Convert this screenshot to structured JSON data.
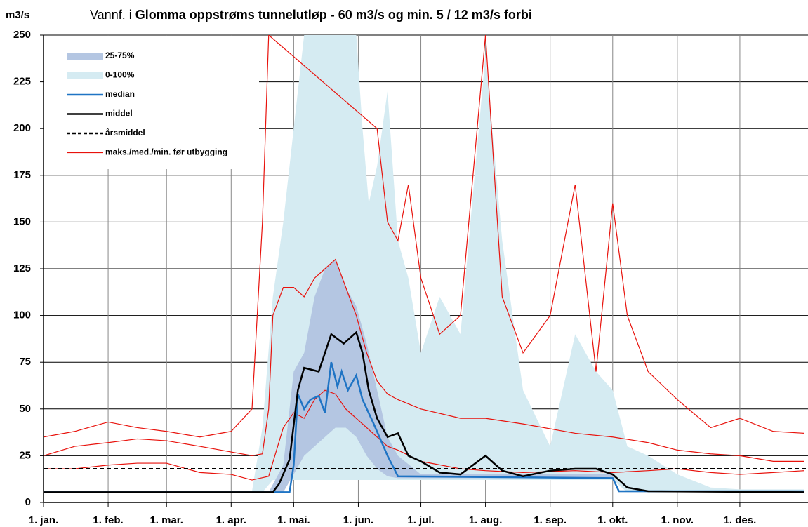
{
  "chart_data": {
    "type": "line",
    "title": [
      "Vannf. i",
      "Glomma oppstrøms tunnelutløp - 60 m3/s og min. 5 / 12 m3/s forbi"
    ],
    "y_label": "m3/s",
    "xlim": [
      0,
      365
    ],
    "xticks": [
      {
        "value": 0,
        "label": "1. jan."
      },
      {
        "value": 31,
        "label": "1. feb."
      },
      {
        "value": 59,
        "label": "1. mar."
      },
      {
        "value": 90,
        "label": "1. apr."
      },
      {
        "value": 120,
        "label": "1. mai."
      },
      {
        "value": 151,
        "label": "1. jun."
      },
      {
        "value": 181,
        "label": "1. jul."
      },
      {
        "value": 212,
        "label": "1. aug."
      },
      {
        "value": 243,
        "label": "1. sep."
      },
      {
        "value": 273,
        "label": "1. okt."
      },
      {
        "value": 304,
        "label": "1. nov."
      },
      {
        "value": 334,
        "label": "1. des."
      }
    ],
    "ylim": [
      0,
      250
    ],
    "yticks": [
      0,
      25,
      50,
      75,
      100,
      125,
      150,
      175,
      200,
      225,
      250
    ],
    "grid": true,
    "series": [
      {
        "name": "25-75%",
        "kind": "band",
        "color": "#b4c6e2",
        "x": [
          0,
          108,
          115,
          120,
          125,
          130,
          135,
          140,
          145,
          150,
          155,
          160,
          165,
          170,
          181,
          273,
          276,
          365
        ],
        "lower": [
          5.5,
          5.5,
          5.5,
          15,
          25,
          30,
          35,
          40,
          40,
          35,
          25,
          18,
          14,
          13,
          13,
          13,
          5.5,
          5.5
        ],
        "upper": [
          5.5,
          5.5,
          20,
          70,
          80,
          110,
          125,
          130,
          115,
          105,
          85,
          60,
          35,
          25,
          15,
          15,
          6,
          6
        ]
      },
      {
        "name": "0-100%",
        "kind": "band",
        "color": "#d5ebf2",
        "x": [
          0,
          100,
          105,
          110,
          115,
          120,
          125,
          130,
          135,
          140,
          145,
          150,
          153,
          156,
          160,
          165,
          170,
          175,
          181,
          190,
          200,
          212,
          220,
          230,
          243,
          255,
          265,
          273,
          280,
          290,
          304,
          320,
          334,
          350,
          365
        ],
        "lower": [
          5.5,
          5.5,
          5.5,
          12,
          12,
          12,
          12,
          12,
          12,
          12,
          12,
          12,
          12,
          12,
          12,
          12,
          12,
          12,
          12,
          12,
          12,
          12,
          12,
          12,
          12,
          12,
          12,
          12,
          5.5,
          5.5,
          5.5,
          5.5,
          5.5,
          5.5,
          5.5
        ],
        "upper": [
          6,
          6,
          40,
          110,
          150,
          200,
          250,
          250,
          250,
          250,
          250,
          250,
          200,
          160,
          180,
          220,
          140,
          120,
          80,
          110,
          90,
          240,
          140,
          60,
          30,
          90,
          70,
          60,
          30,
          25,
          15,
          8,
          7,
          7,
          7
        ]
      },
      {
        "name": "median",
        "kind": "line",
        "color": "#1f74c4",
        "width": 2.5,
        "x": [
          0,
          118,
          120,
          122,
          125,
          128,
          132,
          135,
          138,
          141,
          143,
          146,
          150,
          153,
          158,
          165,
          170,
          273,
          276,
          365
        ],
        "values": [
          5.5,
          5.5,
          20,
          58,
          50,
          55,
          57,
          48,
          75,
          62,
          70,
          60,
          68,
          55,
          43,
          25,
          14,
          13,
          6,
          6
        ]
      },
      {
        "name": "middel",
        "kind": "line",
        "color": "#000000",
        "width": 2.5,
        "x": [
          0,
          110,
          113,
          118,
          122,
          125,
          132,
          135,
          138,
          144,
          150,
          153,
          156,
          160,
          165,
          170,
          175,
          181,
          190,
          200,
          212,
          220,
          230,
          243,
          255,
          265,
          273,
          280,
          290,
          365
        ],
        "values": [
          5.5,
          5.5,
          10,
          23,
          60,
          72,
          70,
          80,
          90,
          85,
          91,
          80,
          60,
          45,
          35,
          37,
          25,
          22,
          16,
          15,
          25,
          17,
          14,
          17,
          18,
          18,
          15,
          8,
          6,
          5.5
        ]
      },
      {
        "name": "årsmiddel",
        "kind": "hline",
        "color": "#000000",
        "value": 18
      },
      {
        "name": "maks./med./min. før utbygging",
        "kind": "lines",
        "color": "#e8120c",
        "lines": [
          {
            "x": [
              0,
              15,
              31,
              45,
              59,
              75,
              90,
              100,
              105,
              108,
              160,
              165,
              170,
              175,
              181,
              190,
              200,
              212,
              220,
              230,
              243,
              255,
              265,
              273,
              280,
              290,
              304,
              320,
              334,
              350,
              365
            ],
            "values": [
              35,
              38,
              43,
              40,
              38,
              35,
              38,
              50,
              150,
              250,
              200,
              150,
              140,
              170,
              120,
              90,
              100,
              250,
              110,
              80,
              100,
              170,
              70,
              160,
              100,
              70,
              55,
              40,
              45,
              38,
              37
            ]
          },
          {
            "x": [
              0,
              15,
              31,
              45,
              59,
              75,
              90,
              100,
              105,
              108,
              110,
              115,
              120,
              125,
              130,
              135,
              140,
              145,
              150,
              155,
              160,
              165,
              170,
              181,
              200,
              212,
              230,
              255,
              273,
              290,
              304,
              320,
              334,
              350,
              365
            ],
            "values": [
              25,
              30,
              32,
              34,
              33,
              30,
              27,
              25,
              26,
              50,
              100,
              115,
              115,
              110,
              120,
              125,
              130,
              115,
              100,
              80,
              65,
              58,
              55,
              50,
              45,
              45,
              42,
              37,
              35,
              32,
              28,
              26,
              25,
              22,
              22
            ]
          },
          {
            "x": [
              0,
              15,
              31,
              45,
              59,
              75,
              90,
              100,
              108,
              115,
              120,
              125,
              130,
              135,
              140,
              145,
              150,
              155,
              160,
              165,
              170,
              181,
              200,
              212,
              230,
              255,
              273,
              290,
              304,
              320,
              334,
              350,
              365
            ],
            "values": [
              18,
              18,
              20,
              21,
              21,
              16,
              15,
              12,
              14,
              40,
              48,
              45,
              55,
              60,
              58,
              50,
              45,
              40,
              35,
              30,
              28,
              22,
              18,
              17,
              16,
              17,
              16,
              17,
              18,
              16,
              15,
              16,
              17
            ]
          }
        ]
      }
    ]
  }
}
